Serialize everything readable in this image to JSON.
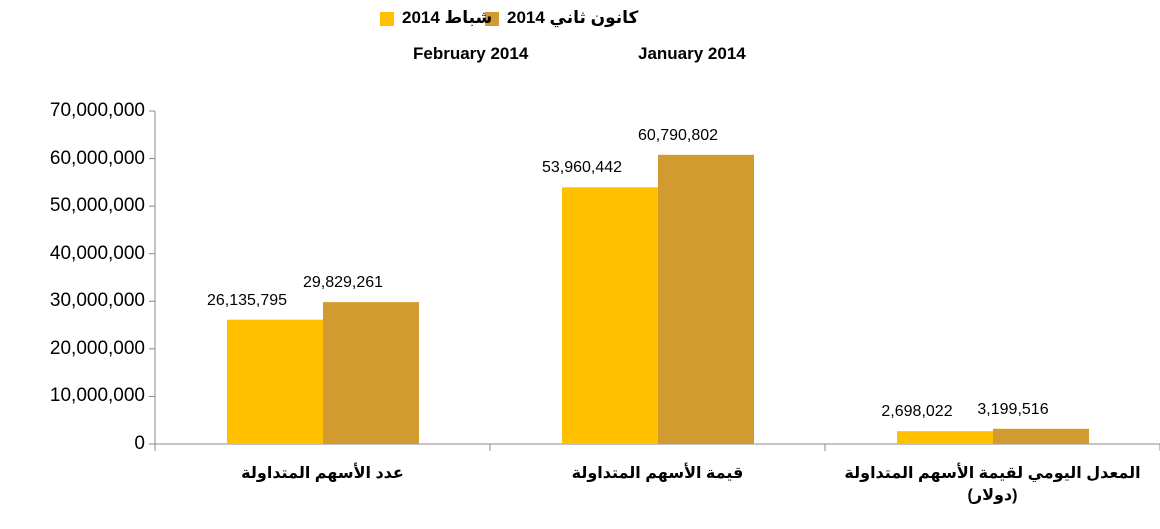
{
  "chart_data": {
    "type": "bar",
    "categories": [
      "عدد الأسهم المتداولة",
      "قيمة الأسهم المتداولة",
      "المعدل اليومي لقيمة الأسهم المتداولة (دولار)"
    ],
    "series": [
      {
        "name": "شباط 2014",
        "name_en": "February 2014",
        "color": "#ffc000",
        "values": [
          26135795,
          53960442,
          2698022
        ],
        "value_labels": [
          "26,135,795",
          "53,960,442",
          "2,698,022"
        ]
      },
      {
        "name": "كانون ثاني 2014",
        "name_en": "January 2014",
        "color": "#d19b2f",
        "values": [
          29829261,
          60790802,
          3199516
        ],
        "value_labels": [
          "29,829,261",
          "60,790,802",
          "3,199,516"
        ]
      }
    ],
    "ylim": [
      0,
      70000000
    ],
    "yticks": [
      0,
      {
        "value": 10000000,
        "label": "10,000,000"
      },
      {
        "value": 20000000,
        "label": "20,000,000"
      },
      {
        "value": 30000000,
        "label": "30,000,000"
      },
      {
        "value": 40000000,
        "label": "40,000,000"
      },
      {
        "value": 50000000,
        "label": "50,000,000"
      },
      {
        "value": 60000000,
        "label": "60,000,000"
      },
      {
        "value": 70000000,
        "label": "70,000,000"
      }
    ],
    "legend": "top"
  }
}
